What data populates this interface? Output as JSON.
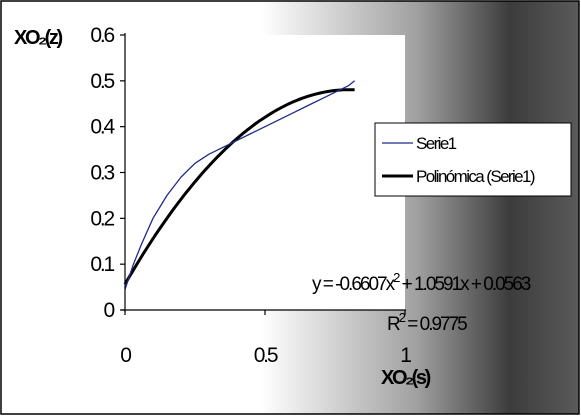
{
  "chart_data": {
    "type": "line",
    "title": "",
    "xlabel": "XO₂(s)",
    "ylabel": "XO₂(z)",
    "xlim": [
      0,
      1
    ],
    "ylim": [
      0,
      0.6
    ],
    "x_ticks": [
      "0",
      "0.5",
      "1"
    ],
    "y_ticks": [
      "0",
      "0.1",
      "0.2",
      "0.3",
      "0.4",
      "0.5",
      "0.6"
    ],
    "grid": false,
    "legend_position": "right",
    "series": [
      {
        "name": "Serie1",
        "color": "#1f2a8c",
        "x": [
          0.0,
          0.03,
          0.06,
          0.1,
          0.15,
          0.2,
          0.25,
          0.3,
          0.35,
          0.4,
          0.45,
          0.5,
          0.55,
          0.6,
          0.65,
          0.7,
          0.75,
          0.8,
          0.82
        ],
        "y": [
          0.045,
          0.1,
          0.145,
          0.2,
          0.25,
          0.29,
          0.32,
          0.34,
          0.355,
          0.37,
          0.385,
          0.4,
          0.415,
          0.43,
          0.445,
          0.46,
          0.475,
          0.49,
          0.5
        ]
      },
      {
        "name": "Polinómica (Serie1)",
        "color": "#000000",
        "type": "polynomial-fit",
        "coefficients": [
          -0.6607,
          1.0591,
          0.0563
        ],
        "x_range": [
          0.0,
          0.82
        ]
      }
    ],
    "annotations": {
      "equation": "y = -0.6607x",
      "equation_superscript": "2",
      "equation_tail": " + 1.0591x + 0.0563",
      "r2_prefix": "R",
      "r2_superscript": "2",
      "r2_tail": " = 0.9775"
    }
  }
}
